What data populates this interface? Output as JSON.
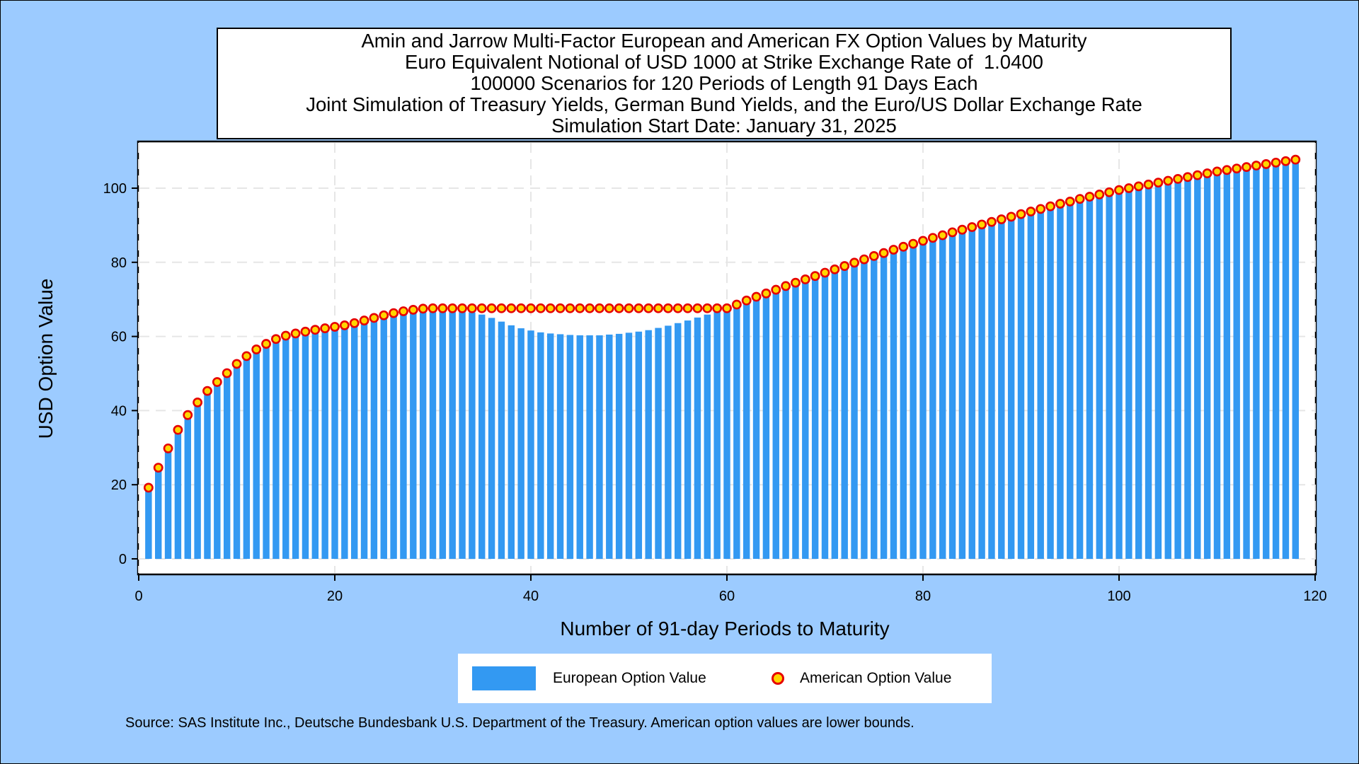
{
  "chart_data": {
    "type": "bar",
    "title_lines": [
      "Amin and Jarrow Multi-Factor European and American FX Option Values by Maturity",
      "Euro Equivalent Notional of USD 1000 at Strike Exchange Rate of  1.0400",
      "100000 Scenarios for 120 Periods of Length 91 Days Each",
      "Joint Simulation of Treasury Yields, German Bund Yields, and the Euro/US Dollar Exchange Rate",
      "Simulation Start Date: January 31, 2025"
    ],
    "xlabel": "Number of 91-day Periods to Maturity",
    "ylabel": "USD Option Value",
    "xlim": [
      0,
      120
    ],
    "ylim": [
      0,
      110
    ],
    "xticks": [
      0,
      20,
      40,
      60,
      80,
      100,
      120
    ],
    "yticks": [
      0,
      20,
      40,
      60,
      80,
      100
    ],
    "grid": true,
    "legend_position": "bottom",
    "colors": {
      "european": "#3399f2",
      "american_fill": "#ffd500",
      "american_edge": "#e60000",
      "background": "#9ccbff"
    },
    "x": [
      1,
      2,
      3,
      4,
      5,
      6,
      7,
      8,
      9,
      10,
      11,
      12,
      13,
      14,
      15,
      16,
      17,
      18,
      19,
      20,
      21,
      22,
      23,
      24,
      25,
      26,
      27,
      28,
      29,
      30,
      31,
      32,
      33,
      34,
      35,
      36,
      37,
      38,
      39,
      40,
      41,
      42,
      43,
      44,
      45,
      46,
      47,
      48,
      49,
      50,
      51,
      52,
      53,
      54,
      55,
      56,
      57,
      58,
      59,
      60,
      61,
      62,
      63,
      64,
      65,
      66,
      67,
      68,
      69,
      70,
      71,
      72,
      73,
      74,
      75,
      76,
      77,
      78,
      79,
      80,
      81,
      82,
      83,
      84,
      85,
      86,
      87,
      88,
      89,
      90,
      91,
      92,
      93,
      94,
      95,
      96,
      97,
      98,
      99,
      100,
      101,
      102,
      103,
      104,
      105,
      106,
      107,
      108,
      109,
      110,
      111,
      112,
      113,
      114,
      115,
      116,
      117,
      118
    ],
    "series": [
      {
        "name": "European Option Value",
        "style": "bar",
        "values": [
          19.2,
          24.6,
          29.8,
          34.8,
          38.8,
          42.2,
          45.3,
          47.7,
          50.1,
          52.6,
          54.7,
          56.5,
          58.0,
          59.3,
          60.2,
          60.8,
          61.3,
          61.8,
          62.2,
          62.6,
          63.0,
          63.6,
          64.3,
          65.0,
          65.7,
          66.3,
          66.8,
          67.2,
          67.5,
          67.6,
          67.6,
          67.4,
          67.0,
          66.5,
          65.9,
          65.0,
          64.0,
          63.0,
          62.2,
          61.6,
          61.1,
          60.8,
          60.6,
          60.4,
          60.3,
          60.3,
          60.3,
          60.5,
          60.7,
          61.0,
          61.3,
          61.7,
          62.3,
          62.9,
          63.6,
          64.3,
          65.1,
          65.9,
          66.7,
          67.5,
          68.6,
          69.7,
          70.7,
          71.6,
          72.6,
          73.6,
          74.5,
          75.4,
          76.3,
          77.2,
          78.1,
          79.0,
          79.9,
          80.8,
          81.7,
          82.5,
          83.4,
          84.2,
          85.0,
          85.8,
          86.6,
          87.3,
          88.1,
          88.8,
          89.5,
          90.2,
          90.9,
          91.6,
          92.3,
          93.0,
          93.7,
          94.4,
          95.1,
          95.8,
          96.4,
          97.1,
          97.7,
          98.3,
          98.9,
          99.5,
          100.0,
          100.5,
          101.0,
          101.5,
          102.0,
          102.5,
          103.0,
          103.5,
          104.0,
          104.5,
          104.9,
          105.3,
          105.7,
          106.1,
          106.5,
          106.9,
          107.3,
          107.7
        ]
      },
      {
        "name": "American Option Value",
        "style": "marker",
        "values": [
          19.2,
          24.6,
          29.8,
          34.8,
          38.8,
          42.2,
          45.3,
          47.7,
          50.1,
          52.6,
          54.7,
          56.5,
          58.0,
          59.3,
          60.2,
          60.8,
          61.3,
          61.8,
          62.2,
          62.6,
          63.0,
          63.6,
          64.3,
          65.0,
          65.7,
          66.3,
          66.8,
          67.2,
          67.5,
          67.6,
          67.6,
          67.6,
          67.6,
          67.6,
          67.6,
          67.6,
          67.6,
          67.6,
          67.6,
          67.6,
          67.6,
          67.6,
          67.6,
          67.6,
          67.6,
          67.6,
          67.6,
          67.6,
          67.6,
          67.6,
          67.6,
          67.6,
          67.6,
          67.6,
          67.6,
          67.6,
          67.6,
          67.6,
          67.6,
          67.6,
          68.6,
          69.7,
          70.7,
          71.6,
          72.6,
          73.6,
          74.5,
          75.4,
          76.3,
          77.2,
          78.1,
          79.0,
          79.9,
          80.8,
          81.7,
          82.5,
          83.4,
          84.2,
          85.0,
          85.8,
          86.6,
          87.3,
          88.1,
          88.8,
          89.5,
          90.2,
          90.9,
          91.6,
          92.3,
          93.0,
          93.7,
          94.4,
          95.1,
          95.8,
          96.4,
          97.1,
          97.7,
          98.3,
          98.9,
          99.5,
          100.0,
          100.5,
          101.0,
          101.5,
          102.0,
          102.5,
          103.0,
          103.5,
          104.0,
          104.5,
          104.9,
          105.3,
          105.7,
          106.1,
          106.5,
          106.9,
          107.3,
          107.7
        ]
      }
    ]
  },
  "source": "Source: SAS Institute Inc., Deutsche Bundesbank U.S. Department of the Treasury. American option values are lower bounds."
}
